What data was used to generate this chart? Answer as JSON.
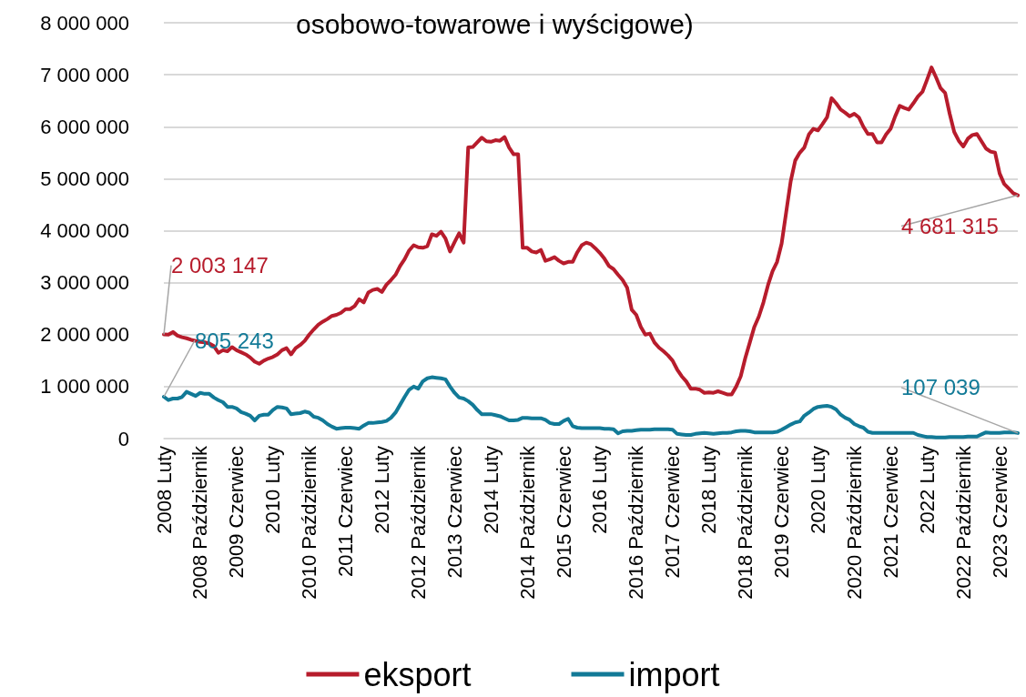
{
  "chart_data": {
    "type": "line",
    "title": "osobowo-towarowe i wyścigowe)",
    "categories": [
      "2008 Luty",
      null,
      null,
      null,
      null,
      null,
      null,
      null,
      "2008 Październik",
      null,
      null,
      null,
      null,
      null,
      null,
      null,
      "2009 Czerwiec",
      null,
      null,
      null,
      null,
      null,
      null,
      null,
      "2010 Luty",
      null,
      null,
      null,
      null,
      null,
      null,
      null,
      "2010 Październik",
      null,
      null,
      null,
      null,
      null,
      null,
      null,
      "2011 Czerwiec",
      null,
      null,
      null,
      null,
      null,
      null,
      null,
      "2012 Luty",
      null,
      null,
      null,
      null,
      null,
      null,
      null,
      "2012 Październik",
      null,
      null,
      null,
      null,
      null,
      null,
      null,
      "2013 Czerwiec",
      null,
      null,
      null,
      null,
      null,
      null,
      null,
      "2014 Luty",
      null,
      null,
      null,
      null,
      null,
      null,
      null,
      "2014 Październik",
      null,
      null,
      null,
      null,
      null,
      null,
      null,
      "2015 Czerwiec",
      null,
      null,
      null,
      null,
      null,
      null,
      null,
      "2016 Luty",
      null,
      null,
      null,
      null,
      null,
      null,
      null,
      "2016 Październik",
      null,
      null,
      null,
      null,
      null,
      null,
      null,
      "2017 Czerwiec",
      null,
      null,
      null,
      null,
      null,
      null,
      null,
      "2018 Luty",
      null,
      null,
      null,
      null,
      null,
      null,
      null,
      "2018 Październik",
      null,
      null,
      null,
      null,
      null,
      null,
      null,
      "2019 Czerwiec",
      null,
      null,
      null,
      null,
      null,
      null,
      null,
      "2020 Luty",
      null,
      null,
      null,
      null,
      null,
      null,
      null,
      "2020 Październik",
      null,
      null,
      null,
      null,
      null,
      null,
      null,
      "2021 Czerwiec",
      null,
      null,
      null,
      null,
      null,
      null,
      null,
      "2022 Luty",
      null,
      null,
      null,
      null,
      null,
      null,
      null,
      "2022 Październik",
      null,
      null,
      null,
      null,
      null,
      null,
      null,
      "2023 Czerwiec",
      null,
      null,
      null,
      null
    ],
    "series": [
      {
        "name": "eksport",
        "color": "#b71c2c",
        "values": [
          2003147,
          2000000,
          2050000,
          1980000,
          1950000,
          1930000,
          1900000,
          1880000,
          1860000,
          1850000,
          1830000,
          1780000,
          1650000,
          1700000,
          1680000,
          1760000,
          1700000,
          1660000,
          1620000,
          1560000,
          1480000,
          1440000,
          1500000,
          1540000,
          1570000,
          1620000,
          1700000,
          1740000,
          1620000,
          1740000,
          1800000,
          1880000,
          2000000,
          2100000,
          2190000,
          2250000,
          2300000,
          2360000,
          2380000,
          2420000,
          2490000,
          2490000,
          2550000,
          2680000,
          2620000,
          2810000,
          2860000,
          2880000,
          2820000,
          2960000,
          3050000,
          3150000,
          3320000,
          3450000,
          3620000,
          3720000,
          3680000,
          3670000,
          3700000,
          3930000,
          3900000,
          3980000,
          3850000,
          3600000,
          3780000,
          3950000,
          3770000,
          5600000,
          5610000,
          5700000,
          5790000,
          5720000,
          5710000,
          5740000,
          5730000,
          5800000,
          5600000,
          5470000,
          5470000,
          3670000,
          3670000,
          3600000,
          3580000,
          3630000,
          3420000,
          3450000,
          3490000,
          3420000,
          3370000,
          3400000,
          3400000,
          3580000,
          3720000,
          3770000,
          3740000,
          3660000,
          3570000,
          3460000,
          3320000,
          3260000,
          3150000,
          3050000,
          2900000,
          2480000,
          2380000,
          2150000,
          2000000,
          2020000,
          1850000,
          1750000,
          1680000,
          1600000,
          1500000,
          1330000,
          1200000,
          1100000,
          960000,
          960000,
          940000,
          880000,
          890000,
          880000,
          910000,
          880000,
          850000,
          850000,
          1000000,
          1200000,
          1550000,
          1850000,
          2150000,
          2350000,
          2620000,
          2950000,
          3220000,
          3400000,
          3750000,
          4350000,
          4950000,
          5350000,
          5500000,
          5600000,
          5850000,
          5960000,
          5930000,
          6050000,
          6180000,
          6550000,
          6450000,
          6330000,
          6270000,
          6200000,
          6250000,
          6180000,
          6000000,
          5860000,
          5860000,
          5700000,
          5700000,
          5850000,
          5960000,
          6200000,
          6400000,
          6360000,
          6330000,
          6450000,
          6580000,
          6670000,
          6900000,
          7140000,
          6950000,
          6740000,
          6650000,
          6250000,
          5900000,
          5730000,
          5620000,
          5770000,
          5840000,
          5860000,
          5720000,
          5580000,
          5520000,
          5500000,
          5100000,
          4900000,
          4810000,
          4720000,
          4681315
        ],
        "value_labels": [
          "2 003 147",
          null,
          null,
          null,
          null,
          null,
          null,
          null,
          null,
          null,
          null,
          null,
          null,
          null,
          null,
          null,
          null,
          null,
          null,
          null,
          null,
          null,
          null,
          null,
          null,
          null,
          null,
          null,
          null,
          null,
          null,
          null,
          null,
          null,
          null,
          null,
          null,
          null,
          null,
          null,
          null,
          null,
          null,
          null,
          null,
          null,
          null,
          null,
          null,
          null,
          null,
          null,
          null,
          null,
          null,
          null,
          null,
          null,
          null,
          null,
          null,
          null,
          null,
          null,
          null,
          null,
          null,
          null,
          null,
          null,
          null,
          null,
          null,
          null,
          null,
          null,
          null,
          null,
          null,
          null,
          null,
          null,
          null,
          null,
          null,
          null,
          null,
          null,
          null,
          null,
          null,
          null,
          null,
          null,
          null,
          null,
          null,
          null,
          null,
          null,
          null,
          null,
          null,
          null,
          null,
          null,
          null,
          null,
          null,
          null,
          null,
          null,
          null,
          null,
          null,
          null,
          null,
          null,
          null,
          null,
          null,
          null,
          null,
          null,
          null,
          null,
          null,
          null,
          null,
          null,
          null,
          null,
          null,
          null,
          null,
          null,
          null,
          null,
          null,
          null,
          null,
          null,
          null,
          null,
          null,
          null,
          null,
          null,
          null,
          null,
          null,
          null,
          null,
          null,
          null,
          null,
          null,
          null,
          null,
          null,
          null,
          null,
          null,
          null,
          null,
          null,
          null,
          null,
          null,
          null,
          null,
          null,
          null,
          null,
          null,
          null,
          null,
          null,
          null,
          null,
          null,
          null,
          null,
          null,
          null,
          null,
          null,
          null,
          "4 681 315"
        ]
      },
      {
        "name": "import",
        "color": "#127a97",
        "values": [
          805243,
          740000,
          770000,
          770000,
          800000,
          900000,
          860000,
          820000,
          880000,
          860000,
          860000,
          790000,
          740000,
          700000,
          610000,
          610000,
          580000,
          510000,
          480000,
          440000,
          350000,
          440000,
          460000,
          460000,
          550000,
          610000,
          600000,
          580000,
          470000,
          480000,
          490000,
          520000,
          500000,
          420000,
          400000,
          350000,
          280000,
          230000,
          190000,
          200000,
          210000,
          210000,
          200000,
          190000,
          250000,
          300000,
          300000,
          310000,
          320000,
          340000,
          400000,
          500000,
          650000,
          800000,
          940000,
          1000000,
          960000,
          1100000,
          1160000,
          1180000,
          1170000,
          1160000,
          1140000,
          1000000,
          880000,
          790000,
          770000,
          720000,
          650000,
          550000,
          470000,
          470000,
          470000,
          450000,
          430000,
          390000,
          350000,
          350000,
          360000,
          400000,
          400000,
          390000,
          390000,
          390000,
          360000,
          300000,
          280000,
          280000,
          340000,
          380000,
          240000,
          210000,
          200000,
          200000,
          200000,
          200000,
          200000,
          190000,
          190000,
          180000,
          100000,
          140000,
          150000,
          150000,
          160000,
          170000,
          170000,
          170000,
          180000,
          180000,
          180000,
          180000,
          170000,
          90000,
          80000,
          70000,
          70000,
          90000,
          100000,
          110000,
          100000,
          90000,
          100000,
          110000,
          110000,
          120000,
          140000,
          150000,
          150000,
          140000,
          120000,
          120000,
          120000,
          120000,
          120000,
          130000,
          170000,
          220000,
          270000,
          310000,
          330000,
          440000,
          500000,
          570000,
          610000,
          620000,
          630000,
          610000,
          560000,
          460000,
          400000,
          360000,
          280000,
          240000,
          210000,
          130000,
          110000,
          110000,
          110000,
          110000,
          110000,
          110000,
          110000,
          110000,
          110000,
          110000,
          70000,
          50000,
          30000,
          30000,
          20000,
          20000,
          20000,
          30000,
          30000,
          30000,
          30000,
          40000,
          40000,
          40000,
          80000,
          120000,
          110000,
          110000,
          110000,
          120000,
          120000,
          120000,
          107039
        ],
        "value_labels": [
          "805 243",
          null,
          null,
          null,
          null,
          null,
          null,
          null,
          null,
          null,
          null,
          null,
          null,
          null,
          null,
          null,
          null,
          null,
          null,
          null,
          null,
          null,
          null,
          null,
          null,
          null,
          null,
          null,
          null,
          null,
          null,
          null,
          null,
          null,
          null,
          null,
          null,
          null,
          null,
          null,
          null,
          null,
          null,
          null,
          null,
          null,
          null,
          null,
          null,
          null,
          null,
          null,
          null,
          null,
          null,
          null,
          null,
          null,
          null,
          null,
          null,
          null,
          null,
          null,
          null,
          null,
          null,
          null,
          null,
          null,
          null,
          null,
          null,
          null,
          null,
          null,
          null,
          null,
          null,
          null,
          null,
          null,
          null,
          null,
          null,
          null,
          null,
          null,
          null,
          null,
          null,
          null,
          null,
          null,
          null,
          null,
          null,
          null,
          null,
          null,
          null,
          null,
          null,
          null,
          null,
          null,
          null,
          null,
          null,
          null,
          null,
          null,
          null,
          null,
          null,
          null,
          null,
          null,
          null,
          null,
          null,
          null,
          null,
          null,
          null,
          null,
          null,
          null,
          null,
          null,
          null,
          null,
          null,
          null,
          null,
          null,
          null,
          null,
          null,
          null,
          null,
          null,
          null,
          null,
          null,
          null,
          null,
          null,
          null,
          null,
          null,
          null,
          null,
          null,
          null,
          null,
          null,
          null,
          null,
          null,
          null,
          null,
          null,
          null,
          null,
          null,
          null,
          null,
          null,
          null,
          null,
          null,
          null,
          null,
          null,
          null,
          null,
          null,
          null,
          null,
          null,
          null,
          null,
          null,
          null,
          null,
          null,
          null,
          "107 039"
        ]
      }
    ],
    "ylim": [
      0,
      8000000
    ],
    "yticks": [
      {
        "value": 0,
        "label": "0"
      },
      {
        "value": 1000000,
        "label": "1 000 000"
      },
      {
        "value": 2000000,
        "label": "2 000 000"
      },
      {
        "value": 3000000,
        "label": "3 000 000"
      },
      {
        "value": 4000000,
        "label": "4 000 000"
      },
      {
        "value": 5000000,
        "label": "5 000 000"
      },
      {
        "value": 6000000,
        "label": "6 000 000"
      },
      {
        "value": 7000000,
        "label": "7 000 000"
      },
      {
        "value": 8000000,
        "label": "8 000 000"
      }
    ],
    "grid": "y",
    "legend": "bottom"
  }
}
